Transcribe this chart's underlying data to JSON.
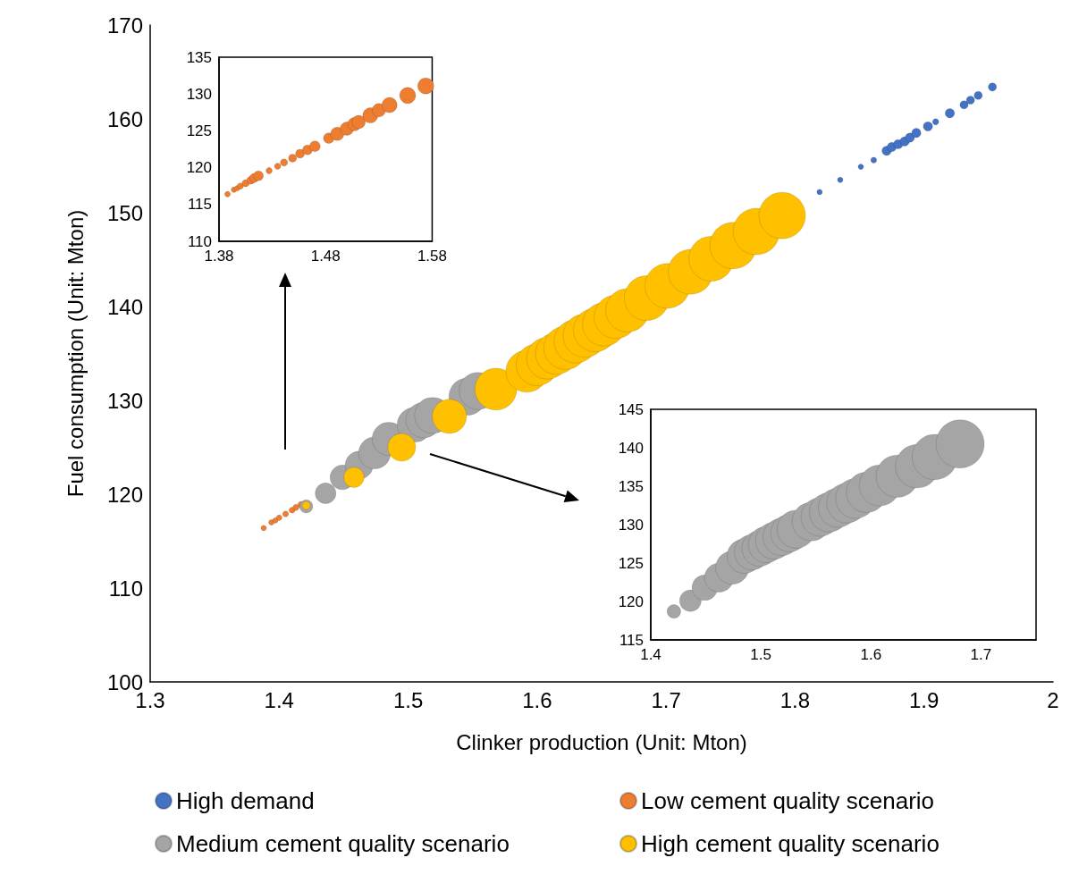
{
  "chart_data": [
    {
      "type": "bubble",
      "xlabel": "Clinker production (Unit: Mton)",
      "ylabel": "Fuel consumption (Unit: Mton)",
      "xlim": [
        1.3,
        2
      ],
      "ylim": [
        100,
        170
      ],
      "xticks": [
        1.3,
        1.4,
        1.5,
        1.6,
        1.7,
        1.8,
        1.9,
        2
      ],
      "yticks": [
        100,
        110,
        120,
        130,
        140,
        150,
        160,
        170
      ],
      "grid": false,
      "legend": "bottom",
      "marker": "circle",
      "series": [
        {
          "name": "High demand",
          "color": "#4472c4",
          "x": [
            1.819,
            1.835,
            1.851,
            1.861,
            1.871,
            1.875,
            1.88,
            1.885,
            1.889,
            1.894,
            1.903,
            1.909,
            1.92,
            1.931,
            1.936,
            1.942,
            1.953
          ],
          "values": [
            152.2,
            153.5,
            154.9,
            155.6,
            156.6,
            157.0,
            157.3,
            157.6,
            158.0,
            158.5,
            159.2,
            159.7,
            160.6,
            161.5,
            162.0,
            162.5,
            163.4
          ],
          "sizes": [
            0.014,
            0.014,
            0.014,
            0.016,
            0.04,
            0.04,
            0.04,
            0.04,
            0.04,
            0.04,
            0.04,
            0.018,
            0.04,
            0.031,
            0.031,
            0.031,
            0.031
          ]
        },
        {
          "name": "Low cement quality scenario",
          "color": "#ed7d31",
          "x": [
            1.388,
            1.394,
            1.397,
            1.4,
            1.405,
            1.41,
            1.413,
            1.417
          ],
          "values": [
            116.4,
            117.0,
            117.2,
            117.5,
            117.9,
            118.3,
            118.6,
            118.9
          ],
          "sizes": [
            0.014,
            0.014,
            0.014,
            0.015,
            0.016,
            0.017,
            0.018,
            0.019
          ]
        },
        {
          "name": "Medium cement quality scenario",
          "color": "#a5a5a5",
          "x": [
            1.421,
            1.436,
            1.449,
            1.462,
            1.474,
            1.485,
            1.505,
            1.512,
            1.519,
            1.546,
            1.554
          ],
          "values": [
            118.7,
            120.1,
            121.8,
            123.1,
            124.4,
            125.9,
            127.4,
            127.9,
            128.4,
            130.4,
            131.0
          ],
          "sizes": [
            0.08,
            0.2,
            0.28,
            0.36,
            0.47,
            0.51,
            0.56,
            0.58,
            0.6,
            0.64,
            0.64
          ]
        },
        {
          "name": "High cement quality scenario",
          "color": "#ffc000",
          "x": [
            1.421,
            1.458,
            1.495,
            1.532,
            1.568,
            1.592,
            1.6,
            1.608,
            1.615,
            1.622,
            1.63,
            1.637,
            1.645,
            1.652,
            1.661,
            1.67,
            1.685,
            1.701,
            1.719,
            1.735,
            1.752,
            1.77,
            1.79
          ],
          "values": [
            118.8,
            121.8,
            125.0,
            128.3,
            131.2,
            133.1,
            133.8,
            134.5,
            135.0,
            135.6,
            136.3,
            136.9,
            137.5,
            138.1,
            138.9,
            139.6,
            140.9,
            142.2,
            143.7,
            145.1,
            146.5,
            148.0,
            149.7
          ],
          "sizes": [
            0.03,
            0.19,
            0.36,
            0.54,
            0.81,
            0.81,
            0.81,
            0.81,
            0.81,
            0.87,
            0.87,
            0.87,
            0.87,
            0.87,
            0.87,
            0.87,
            0.93,
            0.93,
            0.93,
            0.93,
            1,
            1,
            1
          ]
        }
      ]
    },
    {
      "type": "bubble",
      "xlim": [
        1.38,
        1.58
      ],
      "ylim": [
        110,
        135
      ],
      "xticks": [
        1.38,
        1.48,
        1.58
      ],
      "yticks": [
        110,
        115,
        120,
        125,
        130,
        135
      ],
      "grid": false,
      "marker": "circle",
      "series": [
        {
          "color": "#ed7d31",
          "x": [
            1.388,
            1.394,
            1.397,
            1.4,
            1.405,
            1.41,
            1.413,
            1.417,
            1.427,
            1.435,
            1.441,
            1.449,
            1.456,
            1.463,
            1.47,
            1.483,
            1.491,
            1.5,
            1.507,
            1.511,
            1.522,
            1.53,
            1.54,
            1.557,
            1.574
          ],
          "values": [
            116.4,
            117.0,
            117.2,
            117.5,
            117.9,
            118.3,
            118.6,
            118.9,
            119.6,
            120.2,
            120.7,
            121.3,
            121.9,
            122.4,
            122.9,
            124.0,
            124.6,
            125.3,
            125.9,
            126.2,
            127.1,
            127.8,
            128.5,
            129.8,
            131.1
          ],
          "sizes": [
            0.12,
            0.12,
            0.12,
            0.15,
            0.2,
            0.25,
            0.31,
            0.37,
            0.15,
            0.15,
            0.2,
            0.25,
            0.31,
            0.37,
            0.44,
            0.44,
            0.69,
            0.69,
            0.69,
            0.69,
            0.89,
            0.69,
            0.89,
            1,
            1
          ]
        }
      ]
    },
    {
      "type": "bubble",
      "xlim": [
        1.4,
        1.75
      ],
      "ylim": [
        115,
        145
      ],
      "xticks": [
        1.4,
        1.5,
        1.6,
        1.7
      ],
      "yticks": [
        115,
        120,
        125,
        130,
        135,
        140,
        145
      ],
      "grid": false,
      "marker": "circle",
      "series": [
        {
          "color": "#a5a5a5",
          "x": [
            1.421,
            1.436,
            1.449,
            1.462,
            1.474,
            1.485,
            1.492,
            1.499,
            1.505,
            1.512,
            1.519,
            1.526,
            1.532,
            1.546,
            1.554,
            1.562,
            1.57,
            1.578,
            1.586,
            1.596,
            1.608,
            1.624,
            1.642,
            1.658,
            1.681
          ],
          "values": [
            118.7,
            120.1,
            121.8,
            123.1,
            124.4,
            125.9,
            126.4,
            126.9,
            127.4,
            127.9,
            128.4,
            128.9,
            129.4,
            130.4,
            131.0,
            131.6,
            132.2,
            132.8,
            133.4,
            134.2,
            135.1,
            136.3,
            137.6,
            138.8,
            140.5
          ],
          "sizes": [
            0.08,
            0.2,
            0.28,
            0.36,
            0.47,
            0.51,
            0.53,
            0.54,
            0.56,
            0.58,
            0.6,
            0.6,
            0.62,
            0.64,
            0.64,
            0.66,
            0.66,
            0.68,
            0.68,
            0.7,
            0.72,
            0.77,
            0.81,
            0.88,
            1
          ]
        }
      ]
    }
  ]
}
